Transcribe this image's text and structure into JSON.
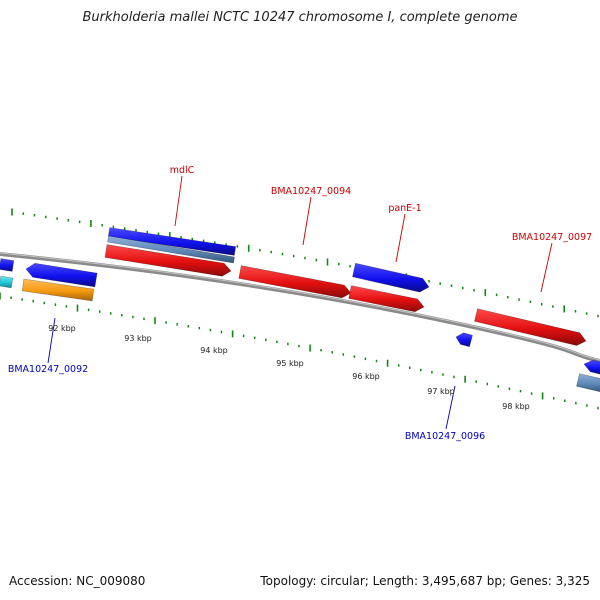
{
  "title": "Burkholderia mallei NCTC 10247 chromosome I, complete genome",
  "footer": {
    "accession": "Accession: NC_009080",
    "summary": "Topology: circular; Length: 3,495,687 bp; Genes: 3,325"
  },
  "colors": {
    "backbone": "#7f7f7f",
    "forward_cds": "#ee1111",
    "reverse_cds": "#1111ee",
    "reverse_gene_pale": "#5e88b8",
    "cyan_feature": "#22c8d8",
    "orange_feature": "#f59a12",
    "tick": "#118811",
    "forward_label": "#cc0000",
    "reverse_label": "#0000bb",
    "kbp_label": "#222222"
  },
  "scale_labels": [
    "92 kbp",
    "93 kbp",
    "94 kbp",
    "95 kbp",
    "96 kbp",
    "97 kbp",
    "98 kbp"
  ],
  "gene_labels": [
    {
      "text": "mdlC",
      "strand": "forward"
    },
    {
      "text": "BMA10247_0094",
      "strand": "forward"
    },
    {
      "text": "panE-1",
      "strand": "forward"
    },
    {
      "text": "BMA10247_0097",
      "strand": "forward"
    },
    {
      "text": "BMA10247_0092",
      "strand": "reverse"
    },
    {
      "text": "BMA10247_0096",
      "strand": "reverse"
    }
  ],
  "features": [
    {
      "name": "forward-cds-mdlC",
      "fill": "forward_cds",
      "arrow": "right"
    },
    {
      "name": "forward-cds-BMA10247-0094",
      "fill": "forward_cds",
      "arrow": "right"
    },
    {
      "name": "forward-cds-panE-1",
      "fill": "forward_cds",
      "arrow": "right"
    },
    {
      "name": "forward-cds-BMA10247-0097",
      "fill": "forward_cds",
      "arrow": "right"
    },
    {
      "name": "reverse-gene-mdlC",
      "fill": "reverse_cds",
      "arrow": "none"
    },
    {
      "name": "reverse-gene-mdlC-pale",
      "fill": "reverse_gene_pale",
      "arrow": "none"
    },
    {
      "name": "reverse-cds-BMA10247-0092",
      "fill": "reverse_cds",
      "arrow": "left"
    },
    {
      "name": "reverse-cds-panE-1",
      "fill": "reverse_cds",
      "arrow": "right"
    },
    {
      "name": "reverse-cds-BMA10247-0096",
      "fill": "reverse_cds",
      "arrow": "left"
    },
    {
      "name": "reverse-cds-edge-left",
      "fill": "reverse_cds",
      "arrow": "none"
    },
    {
      "name": "reverse-cds-edge-right",
      "fill": "reverse_cds",
      "arrow": "left"
    },
    {
      "name": "pale-gene-edge-right",
      "fill": "reverse_gene_pale",
      "arrow": "none"
    },
    {
      "name": "cyan-feature-edge-left",
      "fill": "cyan_feature",
      "arrow": "none"
    },
    {
      "name": "orange-feature-BMA10247-0092",
      "fill": "orange_feature",
      "arrow": "none"
    }
  ]
}
